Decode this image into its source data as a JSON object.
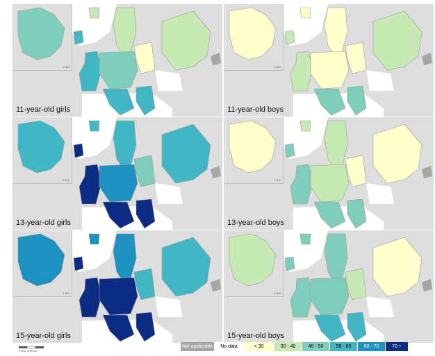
{
  "panels": [
    {
      "label": "11-year-old girls",
      "inset_scale": "0  500"
    },
    {
      "label": "11-year-old boys",
      "inset_scale": "0  500"
    },
    {
      "label": "13-year-old girls",
      "inset_scale": "0  500"
    },
    {
      "label": "13-year-old boys",
      "inset_scale": "0  500"
    },
    {
      "label": "15-year-old girls",
      "inset_scale": "0  500"
    },
    {
      "label": "15-year-old boys",
      "inset_scale": "0  500"
    }
  ],
  "legend": [
    {
      "label": "Not applicable",
      "color": "#a6a6a6",
      "text_color": "#ffffff"
    },
    {
      "label": "No data",
      "color": "#ffffff",
      "text_color": "#000000"
    },
    {
      "label": "< 30",
      "color": "#ffffcc",
      "text_color": "#000000"
    },
    {
      "label": "30 - 40",
      "color": "#c7e9b4",
      "text_color": "#000000"
    },
    {
      "label": "40 - 50",
      "color": "#7fcdbb",
      "text_color": "#000000"
    },
    {
      "label": "50 - 60",
      "color": "#41b6c4",
      "text_color": "#000000"
    },
    {
      "label": "60 - 70",
      "color": "#1d91c0",
      "text_color": "#ffffff"
    },
    {
      "label": "70 +",
      "color": "#0c2c84",
      "text_color": "#ffffff"
    }
  ],
  "scale": {
    "label": "0    500    1000 km"
  },
  "colors": {
    "background_land": "#dedede",
    "sea": "#ffffff"
  },
  "regions": {
    "panel_1": {
      "canada": "40 - 50",
      "west": "50 - 60",
      "russia": "30 - 40",
      "north": "30 - 40",
      "central": "40 - 50",
      "south": "50 - 60",
      "east": "< 30"
    },
    "panel_2": {
      "canada": "< 30",
      "west": "30 - 40",
      "russia": "30 - 40",
      "north": "< 30",
      "central": "< 30",
      "south": "40 - 50",
      "east": "< 30"
    },
    "panel_3": {
      "canada": "50 - 60",
      "west": "70 +",
      "russia": "50 - 60",
      "north": "50 - 60",
      "central": "60 - 70",
      "south": "70 +",
      "east": "40 - 50"
    },
    "panel_4": {
      "canada": "< 30",
      "west": "40 - 50",
      "russia": "< 30",
      "north": "30 - 40",
      "central": "30 - 40",
      "south": "40 - 50",
      "east": "< 30"
    },
    "panel_5": {
      "canada": "60 - 70",
      "west": "70 +",
      "russia": "50 - 60",
      "north": "60 - 70",
      "central": "70 +",
      "south": "70 +",
      "east": "50 - 60"
    },
    "panel_6": {
      "canada": "30 - 40",
      "west": "40 - 50",
      "russia": "< 30",
      "north": "40 - 50",
      "central": "40 - 50",
      "south": "50 - 60",
      "east": "30 - 40"
    }
  }
}
